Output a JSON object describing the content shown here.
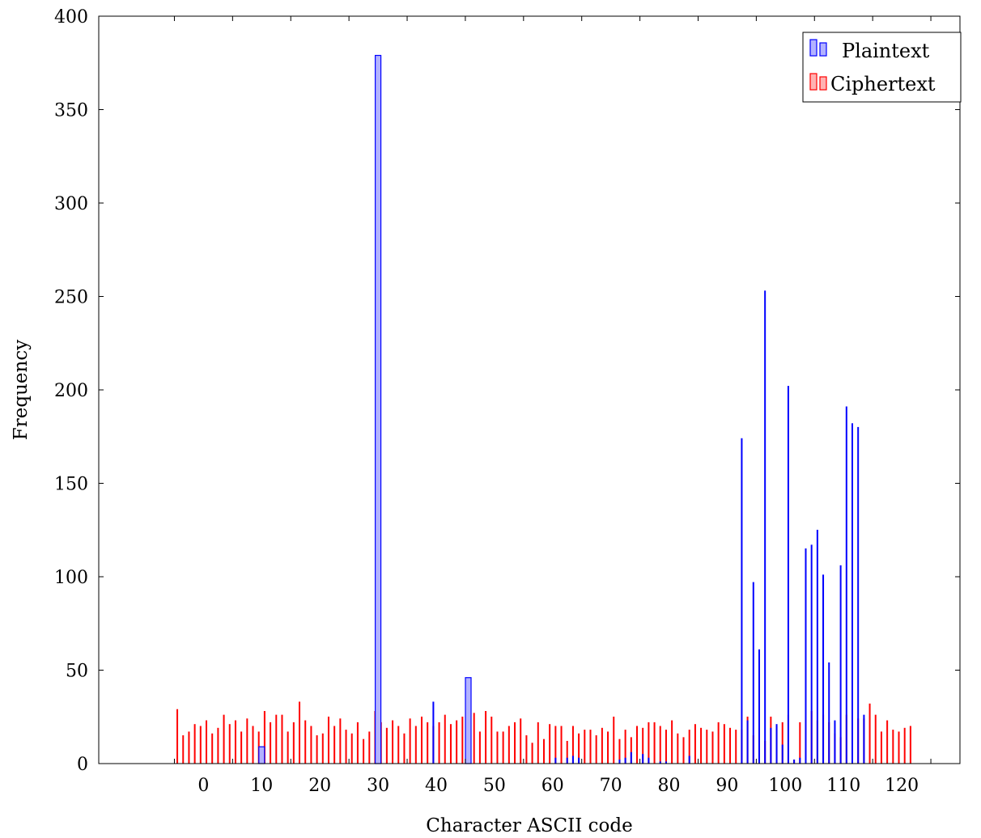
{
  "chart_data": {
    "type": "bar",
    "title": "",
    "xlabel": "Character ASCII code",
    "ylabel": "Frequency",
    "xlim": [
      -18,
      130
    ],
    "ylim": [
      0,
      400
    ],
    "x_ticks": [
      0,
      10,
      20,
      30,
      40,
      50,
      60,
      70,
      80,
      90,
      100,
      110,
      120
    ],
    "y_ticks": [
      0,
      50,
      100,
      150,
      200,
      250,
      300,
      350,
      400
    ],
    "grid": false,
    "legend_position": "top-right",
    "colors": {
      "plaintext": "#0000ff",
      "ciphertext": "#ff0000"
    },
    "series": [
      {
        "name": "Plaintext",
        "color": "#0000ff",
        "points": [
          [
            10,
            9
          ],
          [
            30,
            379
          ],
          [
            39.5,
            33
          ],
          [
            45.5,
            46
          ],
          [
            60.5,
            3
          ],
          [
            62.5,
            3
          ],
          [
            63.5,
            4
          ],
          [
            64.5,
            3
          ],
          [
            71.5,
            2
          ],
          [
            72.5,
            3
          ],
          [
            73.5,
            6
          ],
          [
            75.5,
            5
          ],
          [
            76.5,
            3
          ],
          [
            78.5,
            1
          ],
          [
            79.5,
            1
          ],
          [
            83.5,
            4
          ],
          [
            92.5,
            174
          ],
          [
            93.5,
            23
          ],
          [
            94.5,
            97
          ],
          [
            95.5,
            61
          ],
          [
            96.5,
            253
          ],
          [
            97.5,
            19
          ],
          [
            98.5,
            21
          ],
          [
            99.5,
            10
          ],
          [
            100.5,
            202
          ],
          [
            101.5,
            2
          ],
          [
            102.5,
            3
          ],
          [
            103.5,
            115
          ],
          [
            104.5,
            117
          ],
          [
            105.5,
            125
          ],
          [
            106.5,
            101
          ],
          [
            107.5,
            54
          ],
          [
            108.5,
            23
          ],
          [
            109.5,
            106
          ],
          [
            110.5,
            191
          ],
          [
            111.5,
            182
          ],
          [
            112.5,
            180
          ],
          [
            113.5,
            26
          ]
        ]
      },
      {
        "name": "Ciphertext",
        "color": "#ff0000",
        "points": [
          [
            -4.5,
            29
          ],
          [
            -3.5,
            15
          ],
          [
            -2.5,
            17
          ],
          [
            -1.5,
            21
          ],
          [
            -0.5,
            20
          ],
          [
            0.5,
            23
          ],
          [
            1.5,
            16
          ],
          [
            2.5,
            19
          ],
          [
            3.5,
            26
          ],
          [
            4.5,
            21
          ],
          [
            5.5,
            23
          ],
          [
            6.5,
            17
          ],
          [
            7.5,
            24
          ],
          [
            8.5,
            20
          ],
          [
            9.5,
            17
          ],
          [
            10.5,
            28
          ],
          [
            11.5,
            22
          ],
          [
            12.5,
            26
          ],
          [
            13.5,
            26
          ],
          [
            14.5,
            17
          ],
          [
            15.5,
            22
          ],
          [
            16.5,
            33
          ],
          [
            17.5,
            23
          ],
          [
            18.5,
            20
          ],
          [
            19.5,
            15
          ],
          [
            20.5,
            16
          ],
          [
            21.5,
            25
          ],
          [
            22.5,
            20
          ],
          [
            23.5,
            24
          ],
          [
            24.5,
            18
          ],
          [
            25.5,
            16
          ],
          [
            26.5,
            22
          ],
          [
            27.5,
            13
          ],
          [
            28.5,
            17
          ],
          [
            29.5,
            28
          ],
          [
            30.5,
            22
          ],
          [
            31.5,
            19
          ],
          [
            32.5,
            23
          ],
          [
            33.5,
            20
          ],
          [
            34.5,
            16
          ],
          [
            35.5,
            24
          ],
          [
            36.5,
            20
          ],
          [
            37.5,
            25
          ],
          [
            38.5,
            22
          ],
          [
            39.5,
            20
          ],
          [
            40.5,
            22
          ],
          [
            41.5,
            26
          ],
          [
            42.5,
            21
          ],
          [
            43.5,
            23
          ],
          [
            44.5,
            25
          ],
          [
            45.5,
            28
          ],
          [
            46.5,
            27
          ],
          [
            47.5,
            17
          ],
          [
            48.5,
            28
          ],
          [
            49.5,
            25
          ],
          [
            50.5,
            17
          ],
          [
            51.5,
            17
          ],
          [
            52.5,
            20
          ],
          [
            53.5,
            22
          ],
          [
            54.5,
            24
          ],
          [
            55.5,
            15
          ],
          [
            56.5,
            11
          ],
          [
            57.5,
            22
          ],
          [
            58.5,
            13
          ],
          [
            59.5,
            21
          ],
          [
            60.5,
            20
          ],
          [
            61.5,
            20
          ],
          [
            62.5,
            12
          ],
          [
            63.5,
            20
          ],
          [
            64.5,
            16
          ],
          [
            65.5,
            18
          ],
          [
            66.5,
            18
          ],
          [
            67.5,
            15
          ],
          [
            68.5,
            19
          ],
          [
            69.5,
            17
          ],
          [
            70.5,
            25
          ],
          [
            71.5,
            13
          ],
          [
            72.5,
            18
          ],
          [
            73.5,
            14
          ],
          [
            74.5,
            20
          ],
          [
            75.5,
            19
          ],
          [
            76.5,
            22
          ],
          [
            77.5,
            22
          ],
          [
            78.5,
            20
          ],
          [
            79.5,
            18
          ],
          [
            80.5,
            23
          ],
          [
            81.5,
            16
          ],
          [
            82.5,
            14
          ],
          [
            83.5,
            18
          ],
          [
            84.5,
            21
          ],
          [
            85.5,
            19
          ],
          [
            86.5,
            18
          ],
          [
            87.5,
            17
          ],
          [
            88.5,
            22
          ],
          [
            89.5,
            21
          ],
          [
            90.5,
            19
          ],
          [
            91.5,
            18
          ],
          [
            92.5,
            18
          ],
          [
            93.5,
            25
          ],
          [
            94.5,
            15
          ],
          [
            95.5,
            19
          ],
          [
            96.5,
            12
          ],
          [
            97.5,
            25
          ],
          [
            98.5,
            20
          ],
          [
            99.5,
            22
          ],
          [
            100.5,
            26
          ],
          [
            101.5,
            2
          ],
          [
            102.5,
            22
          ],
          [
            103.5,
            23
          ],
          [
            104.5,
            28
          ],
          [
            105.5,
            23
          ],
          [
            106.5,
            26
          ],
          [
            107.5,
            22
          ],
          [
            108.5,
            16
          ],
          [
            109.5,
            14
          ],
          [
            110.5,
            26
          ],
          [
            111.5,
            20
          ],
          [
            112.5,
            24
          ],
          [
            113.5,
            24
          ],
          [
            114.5,
            32
          ],
          [
            115.5,
            26
          ],
          [
            116.5,
            17
          ],
          [
            117.5,
            23
          ],
          [
            118.5,
            18
          ],
          [
            119.5,
            17
          ],
          [
            120.5,
            19
          ],
          [
            121.5,
            20
          ]
        ]
      }
    ]
  }
}
